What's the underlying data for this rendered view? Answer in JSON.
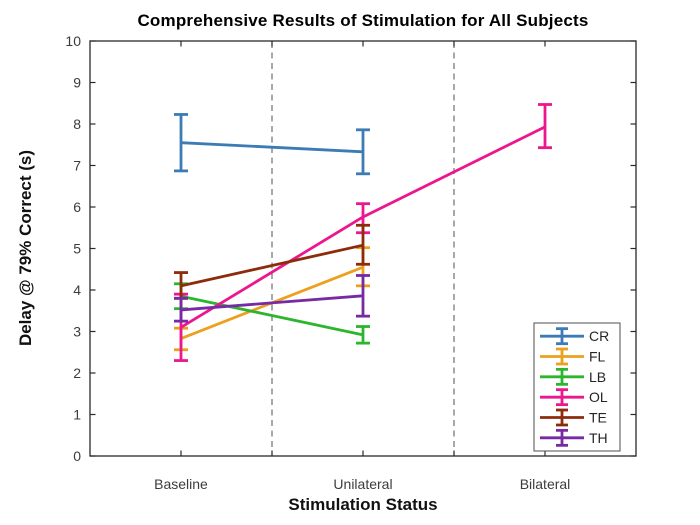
{
  "window": {
    "background": "#ffffff"
  },
  "chart_data": {
    "type": "line",
    "subtype": "errorbar",
    "title": "Comprehensive Results of Stimulation for All Subjects",
    "xlabel": "Stimulation Status",
    "ylabel": "Delay @ 79% Correct (s)",
    "categories": [
      "Baseline",
      "Unilateral",
      "Bilateral"
    ],
    "category_x": [
      1,
      2,
      3
    ],
    "x_range": [
      0.5,
      3.5
    ],
    "ylim": [
      0,
      10
    ],
    "yticks": [
      0,
      1,
      2,
      3,
      4,
      5,
      6,
      7,
      8,
      9,
      10
    ],
    "xticks": [
      1,
      1.5,
      2,
      2.5,
      3
    ],
    "divider_x": [
      1.5,
      2.5
    ],
    "grid": false,
    "box": true,
    "tick_direction": "in",
    "axis_color": "#2a2a2a",
    "divider_color": "#606060",
    "divider_style": "dashed",
    "legend_position": "inside-lower-right",
    "series": [
      {
        "name": "CR",
        "color": "#3d7bb7",
        "points": [
          {
            "x": 1,
            "y": 7.55,
            "lo": 6.87,
            "hi": 8.23
          },
          {
            "x": 2,
            "y": 7.33,
            "lo": 6.8,
            "hi": 7.86
          }
        ]
      },
      {
        "name": "FL",
        "color": "#eca01e",
        "points": [
          {
            "x": 1,
            "y": 2.83,
            "lo": 2.56,
            "hi": 3.08
          },
          {
            "x": 2,
            "y": 4.55,
            "lo": 4.1,
            "hi": 5.02
          }
        ]
      },
      {
        "name": "LB",
        "color": "#2db52d",
        "points": [
          {
            "x": 1,
            "y": 3.85,
            "lo": 3.55,
            "hi": 4.15
          },
          {
            "x": 2,
            "y": 2.92,
            "lo": 2.72,
            "hi": 3.12
          }
        ]
      },
      {
        "name": "OL",
        "color": "#ec178e",
        "points": [
          {
            "x": 1,
            "y": 3.1,
            "lo": 2.3,
            "hi": 3.9
          },
          {
            "x": 2,
            "y": 5.76,
            "lo": 5.38,
            "hi": 6.08
          },
          {
            "x": 3,
            "y": 7.93,
            "lo": 7.43,
            "hi": 8.47
          }
        ]
      },
      {
        "name": "TE",
        "color": "#8d2b0b",
        "points": [
          {
            "x": 1,
            "y": 4.1,
            "lo": 3.8,
            "hi": 4.42
          },
          {
            "x": 2,
            "y": 5.08,
            "lo": 4.62,
            "hi": 5.56
          }
        ]
      },
      {
        "name": "TH",
        "color": "#762aa4",
        "points": [
          {
            "x": 1,
            "y": 3.52,
            "lo": 3.25,
            "hi": 3.8
          },
          {
            "x": 2,
            "y": 3.86,
            "lo": 3.37,
            "hi": 4.35
          }
        ]
      }
    ]
  }
}
